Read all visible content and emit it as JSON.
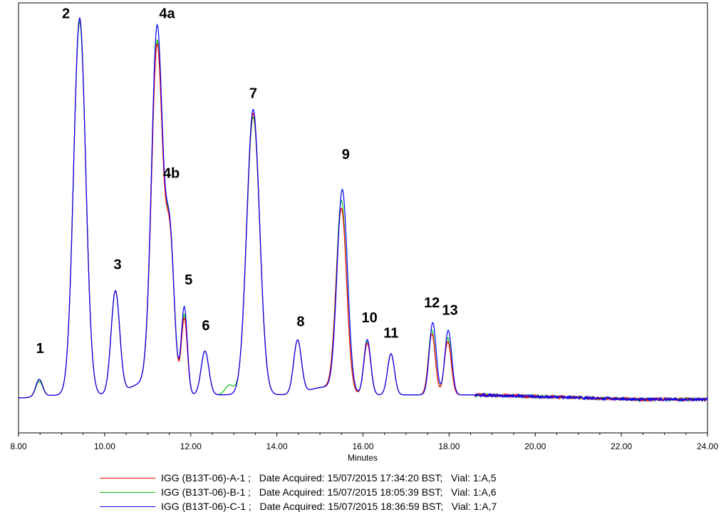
{
  "chart_data": {
    "type": "line",
    "xlabel": "Minutes",
    "ylabel": "",
    "xlim": [
      8.0,
      24.0
    ],
    "ylim": [
      -0.1,
      1.03
    ],
    "x_ticks": [
      "8.00",
      "10.00",
      "12.00",
      "14.00",
      "16.00",
      "18.00",
      "20.00",
      "22.00",
      "24.00"
    ],
    "grid": false,
    "legend_position": "bottom",
    "baseline": 0.0,
    "peaks": [
      {
        "label": "1",
        "x": 8.48,
        "label_x": 8.5,
        "label_y": 0.11
      },
      {
        "label": "2",
        "x": 9.42,
        "label_x": 9.1,
        "label_y": 0.99
      },
      {
        "label": "3",
        "x": 10.25,
        "label_x": 10.3,
        "label_y": 0.33
      },
      {
        "label": "4a",
        "x": 11.22,
        "label_x": 11.45,
        "label_y": 0.99
      },
      {
        "label": "4b",
        "x": 11.52,
        "label_x": 11.55,
        "label_y": 0.57
      },
      {
        "label": "5",
        "x": 11.85,
        "label_x": 11.95,
        "label_y": 0.29
      },
      {
        "label": "6",
        "x": 12.33,
        "label_x": 12.35,
        "label_y": 0.17
      },
      {
        "label": "7",
        "x": 13.45,
        "label_x": 13.45,
        "label_y": 0.78
      },
      {
        "label": "8",
        "x": 14.48,
        "label_x": 14.55,
        "label_y": 0.18
      },
      {
        "label": "9",
        "x": 15.52,
        "label_x": 15.6,
        "label_y": 0.62
      },
      {
        "label": "10",
        "x": 16.1,
        "label_x": 16.15,
        "label_y": 0.19
      },
      {
        "label": "11",
        "x": 16.65,
        "label_x": 16.65,
        "label_y": 0.15
      },
      {
        "label": "12",
        "x": 17.62,
        "label_x": 17.6,
        "label_y": 0.23
      },
      {
        "label": "13",
        "x": 17.98,
        "label_x": 18.02,
        "label_y": 0.21
      }
    ],
    "series": [
      {
        "name": "IGG (B13T-06)-A-1 ;   Date Acquired: 15/07/2015 17:34:20 BST;   Vial: 1:A,5",
        "color": "#ff0000",
        "peaks": [
          {
            "x": 8.48,
            "h": 0.045,
            "w": 0.08
          },
          {
            "x": 9.42,
            "h": 0.99,
            "w": 0.14
          },
          {
            "x": 10.25,
            "h": 0.27,
            "w": 0.1
          },
          {
            "x": 11.22,
            "h": 0.9,
            "w": 0.13
          },
          {
            "x": 11.52,
            "h": 0.38,
            "w": 0.1
          },
          {
            "x": 11.85,
            "h": 0.2,
            "w": 0.07
          },
          {
            "x": 12.33,
            "h": 0.115,
            "w": 0.09
          },
          {
            "x": 13.45,
            "h": 0.74,
            "w": 0.15
          },
          {
            "x": 14.48,
            "h": 0.14,
            "w": 0.09
          },
          {
            "x": 15.5,
            "h": 0.48,
            "w": 0.12
          },
          {
            "x": 16.1,
            "h": 0.135,
            "w": 0.08
          },
          {
            "x": 16.65,
            "h": 0.108,
            "w": 0.08
          },
          {
            "x": 17.6,
            "h": 0.16,
            "w": 0.08
          },
          {
            "x": 17.97,
            "h": 0.14,
            "w": 0.08
          }
        ]
      },
      {
        "name": "IGG (B13T-06)-B-1 ;   Date Acquired: 15/07/2015 18:05:39 BST;   Vial: 1:A,6",
        "color": "#00c000",
        "peaks": [
          {
            "x": 8.48,
            "h": 0.04,
            "w": 0.08
          },
          {
            "x": 9.42,
            "h": 0.98,
            "w": 0.14
          },
          {
            "x": 10.25,
            "h": 0.27,
            "w": 0.1
          },
          {
            "x": 11.22,
            "h": 0.91,
            "w": 0.13
          },
          {
            "x": 11.52,
            "h": 0.39,
            "w": 0.1
          },
          {
            "x": 11.85,
            "h": 0.21,
            "w": 0.07
          },
          {
            "x": 12.33,
            "h": 0.115,
            "w": 0.09
          },
          {
            "x": 12.9,
            "h": 0.025,
            "w": 0.1
          },
          {
            "x": 13.45,
            "h": 0.73,
            "w": 0.15
          },
          {
            "x": 14.48,
            "h": 0.14,
            "w": 0.09
          },
          {
            "x": 15.5,
            "h": 0.5,
            "w": 0.12
          },
          {
            "x": 16.1,
            "h": 0.14,
            "w": 0.08
          },
          {
            "x": 16.65,
            "h": 0.108,
            "w": 0.08
          },
          {
            "x": 17.6,
            "h": 0.17,
            "w": 0.08
          },
          {
            "x": 17.97,
            "h": 0.15,
            "w": 0.08
          }
        ]
      },
      {
        "name": "IGG (B13T-06)-C-1 ;   Date Acquired: 15/07/2015 18:36:59 BST;   Vial: 1:A,7",
        "color": "#0000ff",
        "peaks": [
          {
            "x": 8.48,
            "h": 0.045,
            "w": 0.08
          },
          {
            "x": 9.42,
            "h": 0.99,
            "w": 0.14
          },
          {
            "x": 10.25,
            "h": 0.27,
            "w": 0.1
          },
          {
            "x": 11.22,
            "h": 0.95,
            "w": 0.13
          },
          {
            "x": 11.52,
            "h": 0.39,
            "w": 0.1
          },
          {
            "x": 11.85,
            "h": 0.23,
            "w": 0.07
          },
          {
            "x": 12.33,
            "h": 0.115,
            "w": 0.09
          },
          {
            "x": 13.45,
            "h": 0.75,
            "w": 0.15
          },
          {
            "x": 14.48,
            "h": 0.14,
            "w": 0.09
          },
          {
            "x": 15.52,
            "h": 0.53,
            "w": 0.12
          },
          {
            "x": 16.1,
            "h": 0.145,
            "w": 0.08
          },
          {
            "x": 16.65,
            "h": 0.108,
            "w": 0.08
          },
          {
            "x": 17.62,
            "h": 0.19,
            "w": 0.08
          },
          {
            "x": 17.98,
            "h": 0.17,
            "w": 0.08
          }
        ]
      }
    ]
  }
}
